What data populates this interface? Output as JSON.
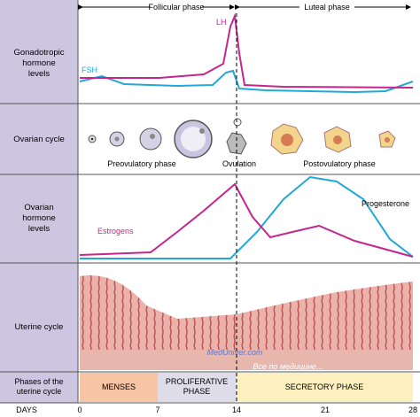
{
  "header": {
    "follicular": "Follicular phase",
    "luteal": "Luteal phase"
  },
  "rows": {
    "gonadotropic": [
      "Gonadotropic",
      "hormone",
      "levels"
    ],
    "ovarian_cycle": [
      "Ovarian cycle"
    ],
    "ovarian_hormone": [
      "Ovarian",
      "hormone",
      "levels"
    ],
    "uterine": [
      "Uterine cycle"
    ],
    "phases": [
      "Phases of the",
      "uterine cycle"
    ],
    "days": [
      "DAYS"
    ]
  },
  "curves": {
    "lh": "LH",
    "fsh": "FSH",
    "estrogens": "Estrogens",
    "progesterone": "Progesterone"
  },
  "ovary": {
    "preovulatory": "Preovulatory phase",
    "ovulation": "Ovulation",
    "postovulatory": "Postovulatory phase"
  },
  "phases": {
    "menses": "MENSES",
    "proliferative": [
      "PROLIFERATIVE",
      "PHASE"
    ],
    "secretory": "SECRETORY PHASE"
  },
  "days": [
    "0",
    "7",
    "14",
    "21",
    "28"
  ],
  "watermark": [
    "MedUniver.com",
    "Все по медицине..."
  ]
}
